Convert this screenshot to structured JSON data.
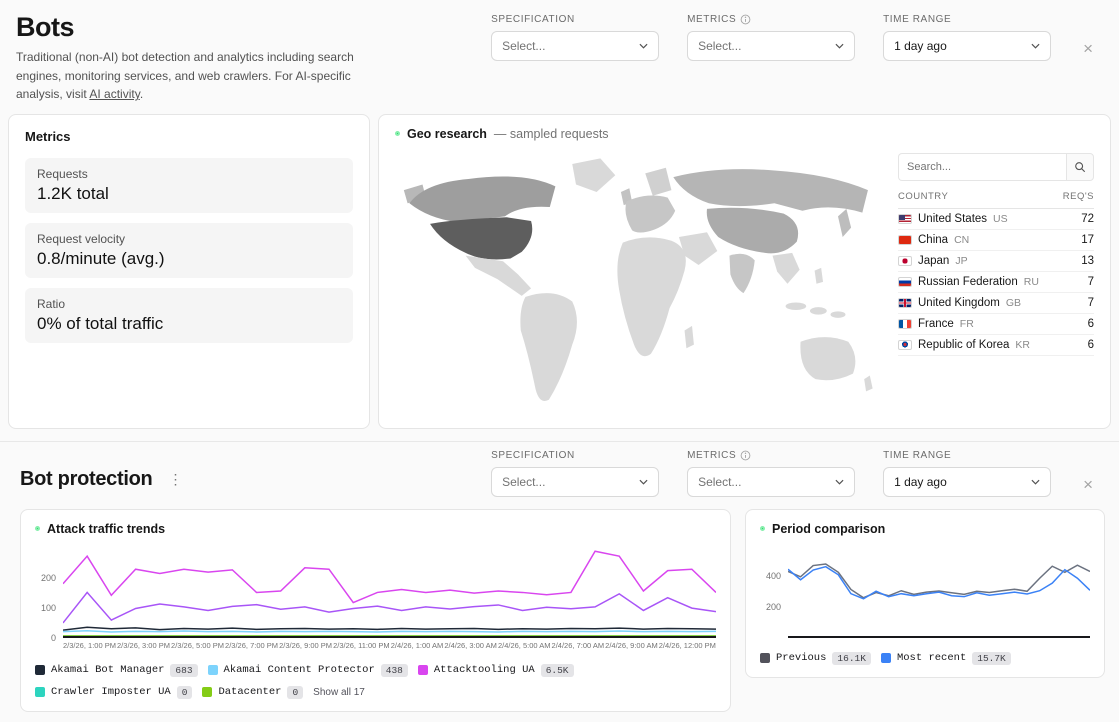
{
  "header": {
    "title": "Bots",
    "description": "Traditional (non-AI) bot detection and analytics including search engines, monitoring services, and web crawlers. For AI-specific analysis, visit",
    "link_text": "AI activity",
    "period": "."
  },
  "filters": {
    "specification": {
      "label": "SPECIFICATION",
      "value": "Select..."
    },
    "metrics": {
      "label": "METRICS",
      "value": "Select..."
    },
    "time_range": {
      "label": "TIME RANGE",
      "value": "1 day ago"
    },
    "close": "×"
  },
  "metrics_panel": {
    "title": "Metrics",
    "items": [
      {
        "label": "Requests",
        "value": "1.2K total"
      },
      {
        "label": "Request velocity",
        "value": "0.8/minute (avg.)"
      },
      {
        "label": "Ratio",
        "value": "0% of total traffic"
      }
    ]
  },
  "geo": {
    "title": "Geo research",
    "subtitle": "— sampled requests",
    "search_placeholder": "Search...",
    "columns": [
      "COUNTRY",
      "REQ'S"
    ],
    "rows": [
      {
        "country": "United States",
        "code": "US",
        "reqs": "72"
      },
      {
        "country": "China",
        "code": "CN",
        "reqs": "17"
      },
      {
        "country": "Japan",
        "code": "JP",
        "reqs": "13"
      },
      {
        "country": "Russian Federation",
        "code": "RU",
        "reqs": "7"
      },
      {
        "country": "United Kingdom",
        "code": "GB",
        "reqs": "7"
      },
      {
        "country": "France",
        "code": "FR",
        "reqs": "6"
      },
      {
        "country": "Republic of Korea",
        "code": "KR",
        "reqs": "6"
      }
    ]
  },
  "bot_protection": {
    "title": "Bot protection",
    "menu_icon": "⋮"
  },
  "chart_data": [
    {
      "type": "line",
      "title": "Attack traffic trends",
      "ylim": [
        0,
        310
      ],
      "yticks": [
        0,
        100,
        200
      ],
      "x_labels": [
        "2/3/26, 1:00 PM",
        "2/3/26, 3:00 PM",
        "2/3/26, 5:00 PM",
        "2/3/26, 7:00 PM",
        "2/3/26, 9:00 PM",
        "2/3/26, 11:00 PM",
        "2/4/26, 1:00 AM",
        "2/4/26, 3:00 AM",
        "2/4/26, 5:00 AM",
        "2/4/26, 7:00 AM",
        "2/4/26, 9:00 AM",
        "2/4/26, 12:00 PM"
      ],
      "series": [
        {
          "name": "Attacktooling UA",
          "color": "#d946ef",
          "values": [
            180,
            275,
            140,
            230,
            215,
            230,
            220,
            228,
            150,
            155,
            235,
            230,
            115,
            150,
            160,
            150,
            158,
            148,
            155,
            150,
            142,
            150,
            292,
            275,
            155,
            225,
            230,
            150
          ]
        },
        {
          "name": "",
          "color": "#a855f7",
          "values": [
            45,
            150,
            55,
            95,
            110,
            100,
            88,
            102,
            108,
            92,
            100,
            82,
            95,
            103,
            88,
            100,
            93,
            101,
            107,
            88,
            99,
            94,
            100,
            145,
            88,
            132,
            96,
            84
          ]
        },
        {
          "name": "Akamai Bot Manager",
          "color": "#1f2937",
          "values": [
            20,
            30,
            25,
            28,
            22,
            26,
            24,
            27,
            23,
            25,
            26,
            24,
            25,
            23,
            26,
            24,
            25,
            26,
            23,
            25,
            24,
            26,
            25,
            27,
            24,
            26,
            25,
            24
          ]
        },
        {
          "name": "Akamai Content Protector",
          "color": "#7dd3fc",
          "values": [
            15,
            18,
            14,
            16,
            15,
            17,
            15,
            16,
            14,
            16,
            15,
            16,
            15,
            14,
            16,
            15,
            16,
            15,
            14,
            16,
            15,
            16,
            15,
            17,
            15,
            16,
            15,
            16
          ]
        },
        {
          "name": "Crawler Imposter UA",
          "color": "#2dd4bf",
          "values": [
            0,
            0,
            0,
            0,
            0,
            0,
            0,
            0,
            0,
            0,
            0,
            0,
            0,
            0,
            0,
            0,
            0,
            0,
            0,
            0,
            0,
            0,
            0,
            0,
            0,
            0,
            0,
            0
          ]
        },
        {
          "name": "Datacenter",
          "color": "#84cc16",
          "values": [
            0,
            0,
            0,
            0,
            0,
            0,
            0,
            0,
            0,
            0,
            0,
            0,
            0,
            0,
            0,
            0,
            0,
            0,
            0,
            0,
            0,
            0,
            0,
            0,
            0,
            0,
            0,
            0
          ]
        }
      ],
      "legend": [
        {
          "label": "Akamai Bot Manager",
          "count": "683",
          "color": "#1f2937"
        },
        {
          "label": "Akamai Content Protector",
          "count": "438",
          "color": "#7dd3fc"
        },
        {
          "label": "Attacktooling UA",
          "count": "6.5K",
          "color": "#d946ef"
        },
        {
          "label": "Crawler Imposter UA",
          "count": "0",
          "color": "#2dd4bf"
        },
        {
          "label": "Datacenter",
          "count": "0",
          "color": "#84cc16"
        }
      ],
      "show_all": "Show all 17"
    },
    {
      "type": "line",
      "title": "Period comparison",
      "ylim": [
        0,
        600
      ],
      "yticks": [
        200,
        400
      ],
      "series": [
        {
          "name": "Previous",
          "color": "#6b7280",
          "values": [
            430,
            395,
            470,
            480,
            425,
            310,
            255,
            290,
            268,
            302,
            278,
            292,
            300,
            288,
            278,
            298,
            290,
            302,
            312,
            298,
            385,
            465,
            425,
            472,
            430
          ]
        },
        {
          "name": "Most recent",
          "color": "#3b82f6",
          "values": [
            445,
            375,
            440,
            462,
            408,
            282,
            248,
            298,
            262,
            282,
            268,
            282,
            292,
            268,
            262,
            288,
            272,
            282,
            292,
            280,
            302,
            352,
            442,
            385,
            305
          ]
        }
      ],
      "legend": [
        {
          "label": "Previous",
          "count": "16.1K",
          "color": "#52525b"
        },
        {
          "label": "Most recent",
          "count": "15.7K",
          "color": "#3b82f6"
        }
      ]
    }
  ]
}
